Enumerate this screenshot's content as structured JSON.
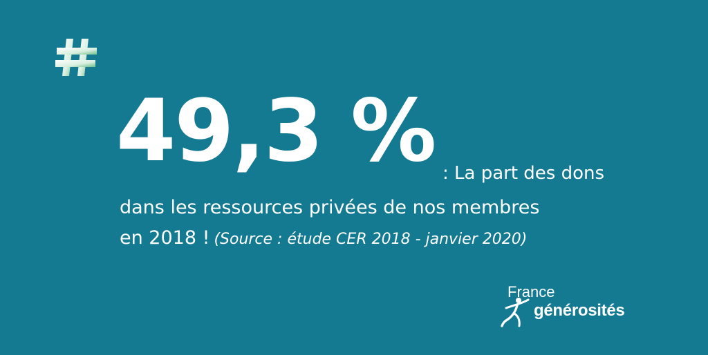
{
  "background_color": "#137a91",
  "icon": {
    "name": "hashtag-icon",
    "glyph": "#",
    "gradient_start": "#ffffff",
    "gradient_end": "#6dbf8a"
  },
  "headline": {
    "stat": "49,3 %",
    "line_1": ": La part des dons",
    "line_2": "dans les ressources privées de nos membres",
    "line_3": "en 2018 !",
    "source": "(Source : étude CER 2018 - janvier 2020)"
  },
  "logo": {
    "line_1": "France",
    "line_2": "générosités"
  }
}
